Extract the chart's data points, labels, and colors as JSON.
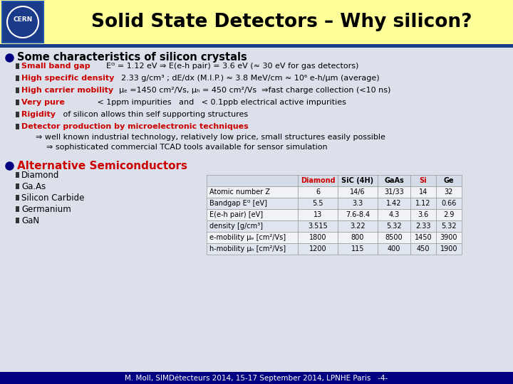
{
  "title": "Solid State Detectors – Why silicon?",
  "title_color": "#000000",
  "title_bg": "#ffff99",
  "header_bar_color": "#1a3a8a",
  "bg_color": "#dce0ea",
  "bullet1_text": "Some characteristics of silicon crystals",
  "bullet1_color": "#000000",
  "sub_bullets": [
    {
      "label": "Small band gap",
      "label_color": "#cc0000",
      "text": "    Eᴳ = 1.12 eV ⇒ E(e-h pair) = 3.6 eV (≈ 30 eV for gas detectors)",
      "text_color": "#000000",
      "tab": 105
    },
    {
      "label": "High specific density",
      "label_color": "#cc0000",
      "text": "2.33 g/cm³ ; dE/dx (M.I.P.) ≈ 3.8 MeV/cm ≈ 10⁶ e-h/μm (average)",
      "text_color": "#000000",
      "tab": 140
    },
    {
      "label": "High carrier mobility",
      "label_color": "#cc0000",
      "text": "μₑ =1450 cm²/Vs, μₕ = 450 cm²/Vs  ⇒fast charge collection (<10 ns)",
      "text_color": "#000000",
      "tab": 137
    },
    {
      "label": "Very pure",
      "label_color": "#cc0000",
      "text": "           < 1ppm impurities   and   < 0.1ppb electrical active impurities",
      "text_color": "#000000",
      "tab": 68
    },
    {
      "label": "Rigidity",
      "label_color": "#cc0000",
      "text": " of silicon allows thin self supporting structures",
      "text_color": "#000000",
      "tab": 68
    },
    {
      "label": "Detector production by microelectronic techniques",
      "label_color": "#cc0000",
      "text": "",
      "text_color": "#000000",
      "tab": 0
    }
  ],
  "arrow_lines": [
    "⇒ well known industrial technology, relatively low price, small structures easily possible",
    "⇒ sophisticated commercial TCAD tools available for sensor simulation"
  ],
  "arrow_indents": [
    50,
    65
  ],
  "bullet2_text": "Alternative Semiconductors",
  "bullet2_color": "#cc0000",
  "alt_list": [
    "Diamond",
    "Ga.As",
    "Silicon Carbide",
    "Germanium",
    "GaN"
  ],
  "table_headers": [
    "",
    "Diamond",
    "SiC (4H)",
    "GaAs",
    "Si",
    "Ge"
  ],
  "table_header_colors": [
    "#000000",
    "#cc0000",
    "#000000",
    "#000000",
    "#cc0000",
    "#000000"
  ],
  "table_rows": [
    [
      "Atomic number Z",
      "6",
      "14/6",
      "31/33",
      "14",
      "32"
    ],
    [
      "Bandgap Eᴳ [eV]",
      "5.5",
      "3.3",
      "1.42",
      "1.12",
      "0.66"
    ],
    [
      "E(e-h pair) [eV]",
      "13",
      "7.6-8.4",
      "4.3",
      "3.6",
      "2.9"
    ],
    [
      "density [g/cm³]",
      "3.515",
      "3.22",
      "5.32",
      "2.33",
      "5.32"
    ],
    [
      "e-mobility μₑ [cm²/Vs]",
      "1800",
      "800",
      "8500",
      "1450",
      "3900"
    ],
    [
      "h-mobility μₕ [cm²/Vs]",
      "1200",
      "115",
      "400",
      "450",
      "1900"
    ]
  ],
  "footer": "M. Moll, SIMDétecteurs 2014, 15-17 September 2014, LPNHE Paris   -4-",
  "footer_color": "#ffffff",
  "footer_bg": "#000080",
  "cern_bg": "#1a3a8a"
}
